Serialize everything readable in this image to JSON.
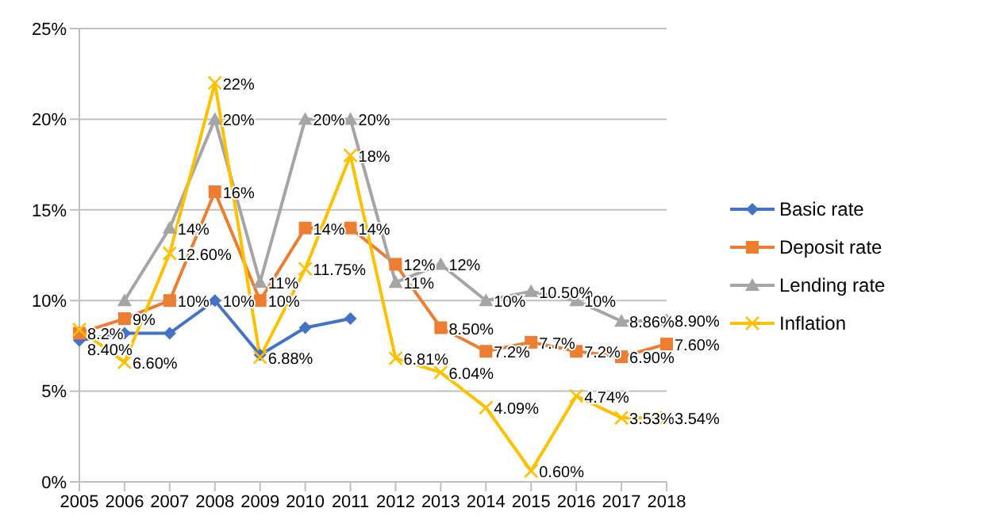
{
  "chart_data": {
    "type": "line",
    "categories": [
      "2005",
      "2006",
      "2007",
      "2008",
      "2009",
      "2010",
      "2011",
      "2012",
      "2013",
      "2014",
      "2015",
      "2016",
      "2017",
      "2018"
    ],
    "series": [
      {
        "name": "Basic rate",
        "color": "#4472c4",
        "marker": "diamond",
        "values": [
          7.8,
          8.2,
          8.2,
          10,
          7,
          8.5,
          9,
          null,
          null,
          null,
          null,
          null,
          null,
          null
        ],
        "value_labels": [
          null,
          null,
          null,
          "10%",
          null,
          null,
          null,
          null,
          null,
          null,
          null,
          null,
          null,
          null
        ]
      },
      {
        "name": "Deposit rate",
        "color": "#ed7d31",
        "marker": "square",
        "values": [
          8.2,
          9,
          10,
          16,
          10,
          14,
          14,
          12,
          8.5,
          7.2,
          7.7,
          7.2,
          6.9,
          7.6
        ],
        "value_labels": [
          "8.2%",
          "9%",
          "10%",
          "16%",
          "10%",
          "14%",
          "14%",
          "12%",
          "8.50%",
          "7.2%",
          "7.7%",
          "7.2%",
          "6.90%",
          "7.60%"
        ]
      },
      {
        "name": "Lending rate",
        "color": "#a5a5a5",
        "marker": "triangle",
        "values": [
          null,
          10,
          14,
          20,
          11,
          20,
          20,
          11,
          12,
          10,
          10.5,
          10,
          8.86,
          8.9
        ],
        "value_labels": [
          null,
          null,
          "14%",
          "20%",
          "11%",
          "20%",
          "20%",
          "11%",
          "12%",
          "10%",
          "10.50%",
          "10%",
          "8.86%",
          "8.90%"
        ]
      },
      {
        "name": "Inflation",
        "color": "#ffc000",
        "marker": "cross",
        "values": [
          8.4,
          6.6,
          12.6,
          22,
          6.88,
          11.75,
          18,
          6.81,
          6.04,
          4.09,
          0.6,
          4.74,
          3.53,
          3.54
        ],
        "value_labels": [
          "8.40%",
          "6.60%",
          "12.60%",
          "22%",
          "6.88%",
          "11.75%",
          "18%",
          "6.81%",
          "6.04%",
          "4.09%",
          "0.60%",
          "4.74%",
          "3.53%",
          "3.54%"
        ]
      }
    ],
    "ylim": [
      0,
      25
    ],
    "yticks": [
      {
        "value": 0,
        "label": "0%"
      },
      {
        "value": 5,
        "label": "5%"
      },
      {
        "value": 10,
        "label": "10%"
      },
      {
        "value": 15,
        "label": "15%"
      },
      {
        "value": 20,
        "label": "20%"
      },
      {
        "value": 25,
        "label": "25%"
      }
    ],
    "grid": "y",
    "legend": "right"
  }
}
